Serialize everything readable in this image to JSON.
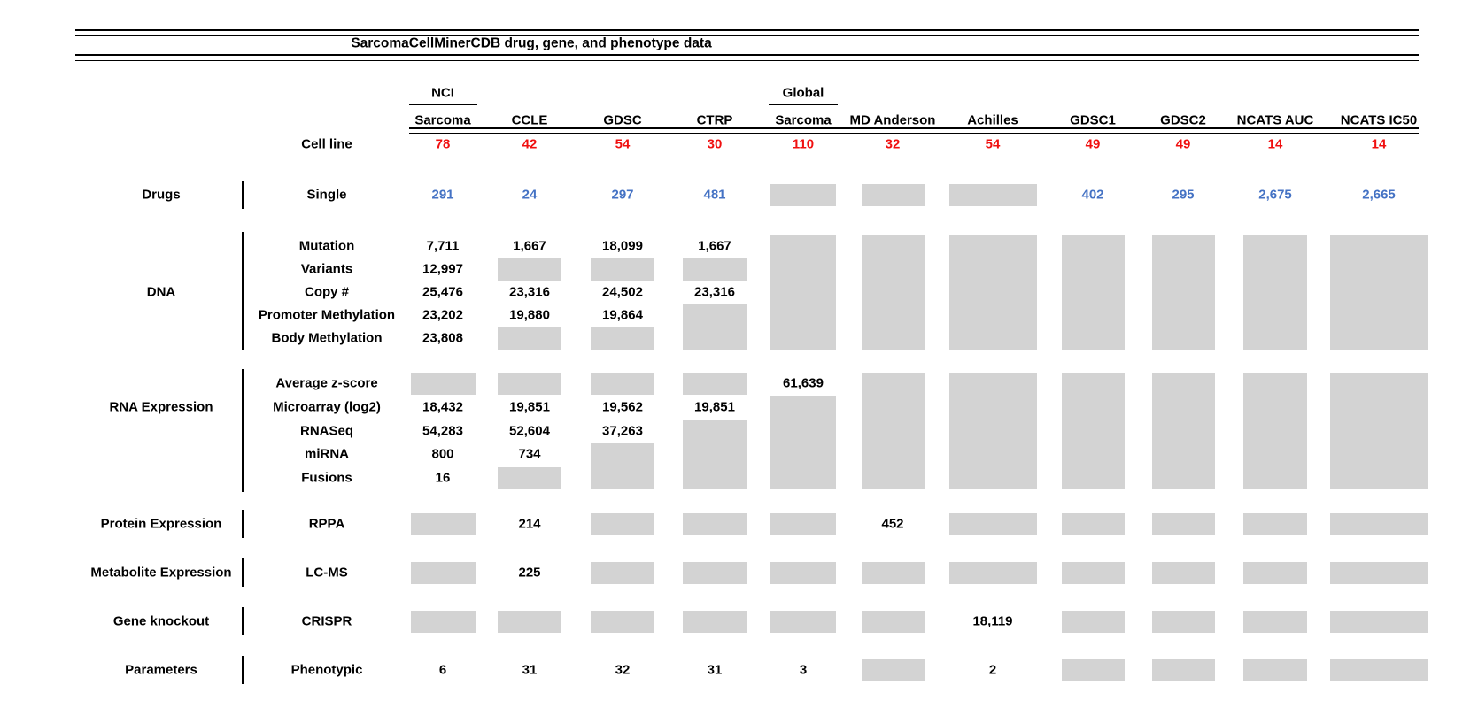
{
  "title": "SarcomaCellMinerCDB drug, gene, and phenotype data",
  "cell_line_label": "Cell line",
  "colors": {
    "cell_line_red": "#f01010",
    "drug_blue": "#4472c4",
    "no_data_gray": "#d3d3d3",
    "text_black": "#000000"
  },
  "columns": [
    {
      "header_top": "NCI",
      "header": "Sarcoma",
      "cell_lines": "78"
    },
    {
      "header_top": "",
      "header": "CCLE",
      "cell_lines": "42"
    },
    {
      "header_top": "",
      "header": "GDSC",
      "cell_lines": "54"
    },
    {
      "header_top": "",
      "header": "CTRP",
      "cell_lines": "30"
    },
    {
      "header_top": "Global",
      "header": "Sarcoma",
      "cell_lines": "110"
    },
    {
      "header_top": "",
      "header": "MD Anderson",
      "cell_lines": "32"
    },
    {
      "header_top": "",
      "header": "Achilles",
      "cell_lines": "54"
    },
    {
      "header_top": "",
      "header": "GDSC1",
      "cell_lines": "49"
    },
    {
      "header_top": "",
      "header": "GDSC2",
      "cell_lines": "49"
    },
    {
      "header_top": "",
      "header": "NCATS AUC",
      "cell_lines": "14"
    },
    {
      "header_top": "",
      "header": "NCATS IC50",
      "cell_lines": "14"
    }
  ],
  "row_groups": [
    {
      "group": "Drugs",
      "rows": [
        {
          "label": "Single",
          "value_color": "blue",
          "cells": [
            "291",
            "24",
            "297",
            "481",
            "BOX1",
            "BOX1",
            "BOX1",
            "402",
            "295",
            "2,675",
            "2,665"
          ]
        }
      ]
    },
    {
      "group": "DNA",
      "rows": [
        {
          "label": "Mutation",
          "cells": [
            "7,711",
            "1,667",
            "18,099",
            "1,667",
            "BOX5",
            "BOX5",
            "BOX5",
            "BOX5",
            "BOX5",
            "BOX5",
            "BOX5"
          ]
        },
        {
          "label": "Variants",
          "cells": [
            "12,997",
            "BOX1",
            "BOX1",
            "BOX1",
            "",
            "",
            "",
            "",
            "",
            "",
            ""
          ]
        },
        {
          "label": "Copy #",
          "cells": [
            "25,476",
            "23,316",
            "24,502",
            "23,316",
            "",
            "",
            "",
            "",
            "",
            "",
            ""
          ]
        },
        {
          "label": "Promoter Methylation",
          "cells": [
            "23,202",
            "19,880",
            "19,864",
            "BOX2",
            "",
            "",
            "",
            "",
            "",
            "",
            ""
          ]
        },
        {
          "label": "Body Methylation",
          "cells": [
            "23,808",
            "BOX1",
            "BOX1",
            "",
            "",
            "",
            "",
            "",
            "",
            "",
            ""
          ]
        }
      ]
    },
    {
      "group": "RNA Expression",
      "rows": [
        {
          "label": "Average z-score",
          "cells": [
            "BOX1",
            "BOX1",
            "BOX1",
            "BOX1",
            "61,639",
            "BOX5",
            "BOX5",
            "BOX5",
            "BOX5",
            "BOX5",
            "BOX5"
          ]
        },
        {
          "label": "Microarray (log2)",
          "cells": [
            "18,432",
            "19,851",
            "19,562",
            "19,851",
            "BOX4",
            "",
            "",
            "",
            "",
            "",
            ""
          ]
        },
        {
          "label": "RNASeq",
          "cells": [
            "54,283",
            "52,604",
            "37,263",
            "BOX3",
            "",
            "",
            "",
            "",
            "",
            "",
            ""
          ]
        },
        {
          "label": "miRNA",
          "cells": [
            "800",
            "734",
            "BOX2",
            "",
            "",
            "",
            "",
            "",
            "",
            "",
            ""
          ]
        },
        {
          "label": "Fusions",
          "cells": [
            "16",
            "BOX1",
            "",
            "",
            "",
            "",
            "",
            "",
            "",
            "",
            ""
          ]
        }
      ]
    },
    {
      "group": "Protein Expression",
      "rows": [
        {
          "label": "RPPA",
          "cells": [
            "BOX1",
            "214",
            "BOX1",
            "BOX1",
            "BOX1",
            "452",
            "BOX1",
            "BOX1",
            "BOX1",
            "BOX1",
            "BOX1"
          ]
        }
      ]
    },
    {
      "group": "Metabolite Expression",
      "rows": [
        {
          "label": "LC-MS",
          "cells": [
            "BOX1",
            "225",
            "BOX1",
            "BOX1",
            "BOX1",
            "BOX1",
            "BOX1",
            "BOX1",
            "BOX1",
            "BOX1",
            "BOX1"
          ]
        }
      ]
    },
    {
      "group": "Gene knockout",
      "rows": [
        {
          "label": "CRISPR",
          "cells": [
            "BOX1",
            "BOX1",
            "BOX1",
            "BOX1",
            "BOX1",
            "BOX1",
            "18,119",
            "BOX1",
            "BOX1",
            "BOX1",
            "BOX1"
          ]
        }
      ]
    },
    {
      "group": "Parameters",
      "rows": [
        {
          "label": "Phenotypic",
          "cells": [
            "6",
            "31",
            "32",
            "31",
            "3",
            "BOX1",
            "2",
            "BOX1",
            "BOX1",
            "BOX1",
            "BOX1"
          ]
        }
      ]
    }
  ]
}
